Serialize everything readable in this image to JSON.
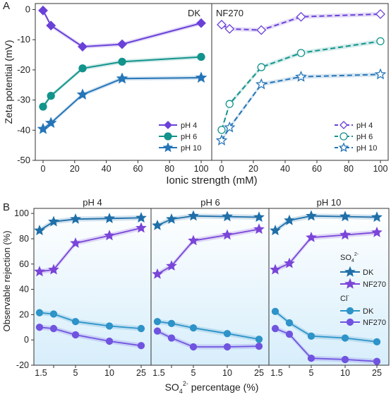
{
  "colors": {
    "ph4": "#6a41d8",
    "ph6": "#12938c",
    "ph10": "#2575b8",
    "dk_so4": "#1f6fa8",
    "nf_so4": "#7a45d8",
    "dk_cl": "#2d93c8",
    "nf_cl": "#7054e0"
  },
  "chart_data": [
    {
      "type": "line",
      "panel_label": "A",
      "panel_title": "DK",
      "xlabel": "Ionic strength (mM)",
      "ylabel": "Zeta potential (mV)",
      "ylim": [
        -50,
        2
      ],
      "xlim": [
        -5,
        102
      ],
      "x_ticks": [
        "0",
        "20",
        "40",
        "60",
        "80",
        "100"
      ],
      "y_ticks": [
        "0",
        "-10",
        "-20",
        "-30",
        "-40",
        "-50"
      ],
      "legend_position": "bottom-right",
      "series": [
        {
          "name": "pH 4",
          "marker": "diamond",
          "filled": true,
          "color_key": "ph4",
          "x": [
            0,
            5,
            25,
            50,
            100
          ],
          "y": [
            -0.3,
            -5.3,
            -12.3,
            -11.5,
            -4.5
          ]
        },
        {
          "name": "pH 6",
          "marker": "circle",
          "filled": true,
          "color_key": "ph6",
          "x": [
            0,
            5,
            25,
            50,
            100
          ],
          "y": [
            -32.2,
            -28.6,
            -19.5,
            -17.3,
            -15.7
          ]
        },
        {
          "name": "pH 10",
          "marker": "star",
          "filled": true,
          "color_key": "ph10",
          "x": [
            0,
            5,
            25,
            50,
            100
          ],
          "y": [
            -39.6,
            -37.6,
            -28.2,
            -22.9,
            -22.6
          ]
        }
      ]
    },
    {
      "type": "line",
      "panel_title": "NF270",
      "xlim": [
        -5,
        102
      ],
      "ylim": [
        -50,
        2
      ],
      "x_ticks": [
        "0",
        "20",
        "40",
        "60",
        "80",
        "100"
      ],
      "legend_position": "bottom-right",
      "series": [
        {
          "name": "pH 4",
          "marker": "diamond",
          "filled": false,
          "color_key": "ph4",
          "x": [
            0,
            5,
            25,
            50,
            100
          ],
          "y": [
            -5.0,
            -6.4,
            -6.8,
            -2.4,
            -1.5
          ]
        },
        {
          "name": "pH 6",
          "marker": "circle",
          "filled": false,
          "color_key": "ph6",
          "x": [
            0,
            5,
            25,
            50,
            100
          ],
          "y": [
            -39.9,
            -31.3,
            -19.1,
            -14.4,
            -10.5
          ]
        },
        {
          "name": "pH 10",
          "marker": "star",
          "filled": false,
          "color_key": "ph10",
          "x": [
            0,
            5,
            25,
            50,
            100
          ],
          "y": [
            -43.4,
            -39.1,
            -24.8,
            -22.3,
            -21.5
          ]
        }
      ]
    },
    {
      "type": "line",
      "panel_label": "B",
      "panel_title": "pH 4",
      "categories": [
        "1.5",
        "5",
        "10",
        "25"
      ],
      "ylabel": "Observable rejection (%)",
      "ylim": [
        -20,
        104
      ],
      "y_ticks": [
        "100",
        "80",
        "60",
        "40",
        "20",
        "0",
        "-20"
      ],
      "series": [
        {
          "name": "SO42- DK",
          "marker": "star",
          "color_key": "dk_so4",
          "x": [
            1.5,
            2.5,
            5,
            10,
            25
          ],
          "y": [
            86.5,
            93.5,
            95.5,
            96.0,
            96.5
          ]
        },
        {
          "name": "SO42- NF270",
          "marker": "star",
          "color_key": "nf_so4",
          "x": [
            1.5,
            2.5,
            5,
            10,
            25
          ],
          "y": [
            54.0,
            55.5,
            76.5,
            82.5,
            88.5
          ]
        },
        {
          "name": "Cl- DK",
          "marker": "circle",
          "color_key": "dk_cl",
          "x": [
            1.5,
            2.5,
            5,
            10,
            25
          ],
          "y": [
            21.5,
            20.5,
            14.5,
            11.0,
            9.0
          ]
        },
        {
          "name": "Cl- NF270",
          "marker": "circle",
          "color_key": "nf_cl",
          "x": [
            1.5,
            2.5,
            5,
            10,
            25
          ],
          "y": [
            10.0,
            9.0,
            4.0,
            -1.0,
            -4.5
          ]
        }
      ]
    },
    {
      "type": "line",
      "panel_title": "pH 6",
      "categories": [
        "1.5",
        "5",
        "10",
        "25"
      ],
      "ylim": [
        -20,
        104
      ],
      "series": [
        {
          "name": "SO42- DK",
          "marker": "star",
          "color_key": "dk_so4",
          "x": [
            1.5,
            2.5,
            5,
            10,
            25
          ],
          "y": [
            90.5,
            95.5,
            98.0,
            97.5,
            97.0
          ]
        },
        {
          "name": "SO42- NF270",
          "marker": "star",
          "color_key": "nf_so4",
          "x": [
            1.5,
            2.5,
            5,
            10,
            25
          ],
          "y": [
            52.0,
            58.5,
            78.5,
            83.0,
            87.5
          ]
        },
        {
          "name": "Cl- DK",
          "marker": "circle",
          "color_key": "dk_cl",
          "x": [
            1.5,
            2.5,
            5,
            10,
            25
          ],
          "y": [
            14.5,
            13.0,
            9.5,
            5.0,
            0.5
          ]
        },
        {
          "name": "Cl- NF270",
          "marker": "circle",
          "color_key": "nf_cl",
          "x": [
            1.5,
            2.5,
            5,
            10,
            25
          ],
          "y": [
            7.0,
            1.5,
            -5.5,
            -5.5,
            -5.0
          ]
        }
      ]
    },
    {
      "type": "line",
      "panel_title": "pH 10",
      "categories": [
        "1.5",
        "5",
        "10",
        "25"
      ],
      "ylim": [
        -20,
        104
      ],
      "legend_position": "middle-right",
      "legend": {
        "so4_title": "SO",
        "so4_sub": "4",
        "so4_sup": "2-",
        "cl_title": "Cl",
        "cl_sup": "-",
        "dk_label": "DK",
        "nf_label": "NF270"
      },
      "series": [
        {
          "name": "SO42- DK",
          "marker": "star",
          "color_key": "dk_so4",
          "x": [
            1.5,
            2.5,
            5,
            10,
            25
          ],
          "y": [
            86.5,
            94.5,
            98.0,
            97.5,
            97.0
          ]
        },
        {
          "name": "SO42- NF270",
          "marker": "star",
          "color_key": "nf_so4",
          "x": [
            1.5,
            2.5,
            5,
            10,
            25
          ],
          "y": [
            55.5,
            60.5,
            81.0,
            83.0,
            85.0
          ]
        },
        {
          "name": "Cl- DK",
          "marker": "circle",
          "color_key": "dk_cl",
          "x": [
            1.5,
            2.5,
            5,
            10,
            25
          ],
          "y": [
            22.5,
            13.5,
            3.0,
            1.5,
            -1.5
          ]
        },
        {
          "name": "Cl- NF270",
          "marker": "circle",
          "color_key": "nf_cl",
          "x": [
            1.5,
            2.5,
            5,
            10,
            25
          ],
          "y": [
            9.0,
            4.5,
            -14.5,
            -15.5,
            -17.0
          ]
        }
      ]
    }
  ],
  "bottom_xlabel": {
    "main": "SO",
    "sub": "4",
    "sup": "2-",
    "rest": " percentage (%)"
  }
}
